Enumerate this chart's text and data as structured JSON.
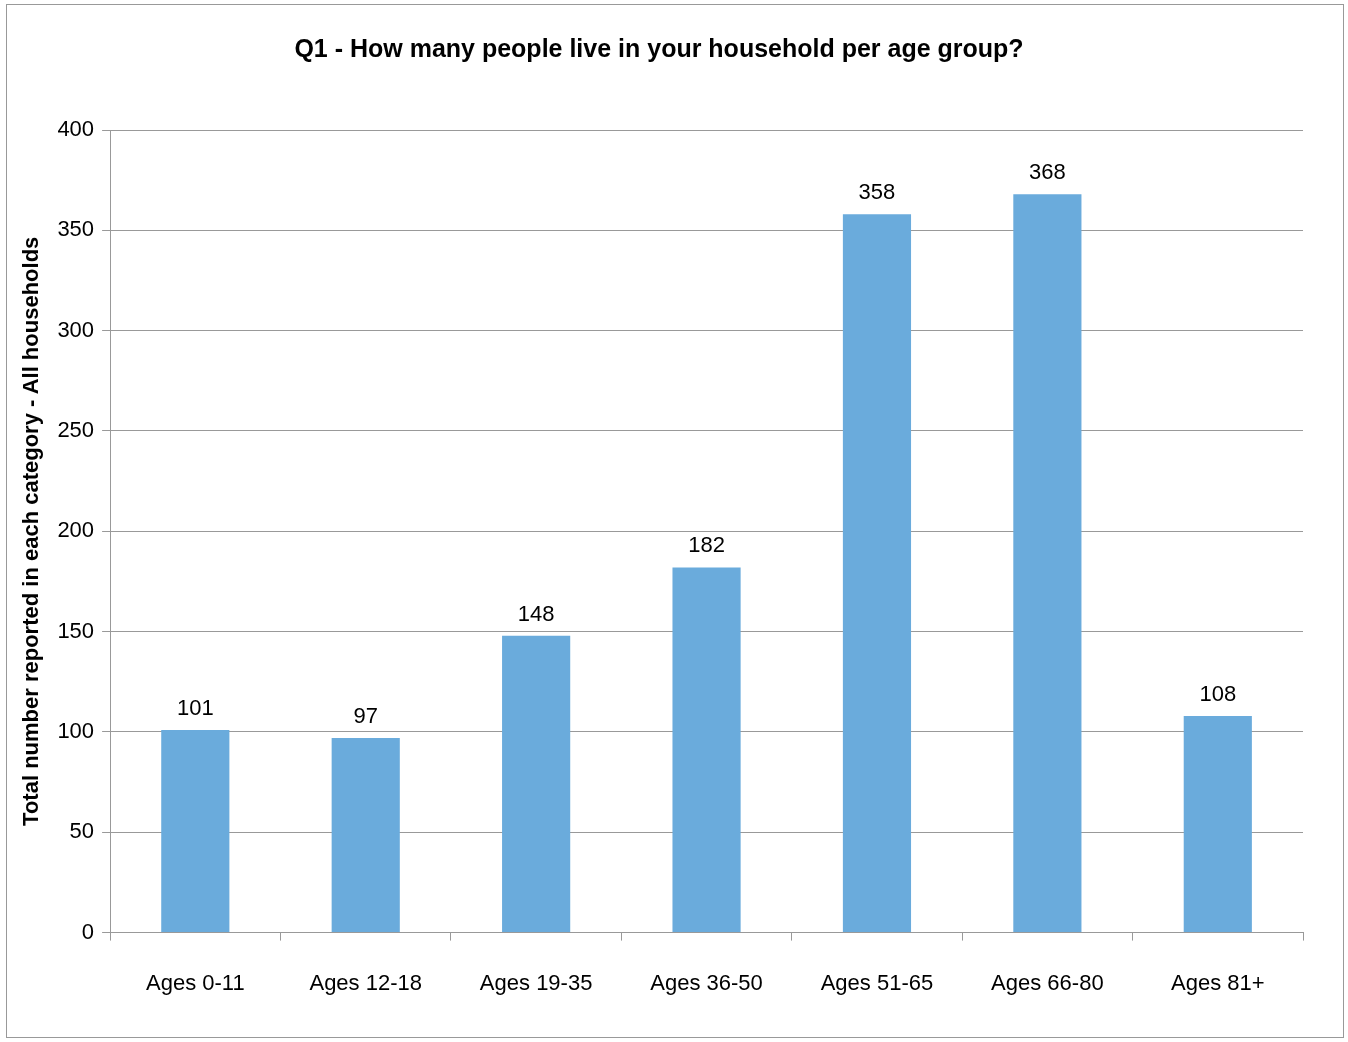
{
  "chart_data": {
    "type": "bar",
    "title": "Q1 - How many people live in your household per age group?",
    "ylabel": "Total number reported in each category - All households",
    "categories": [
      "Ages 0-11",
      "Ages 12-18",
      "Ages 19-35",
      "Ages 36-50",
      "Ages 51-65",
      "Ages 66-80",
      "Ages 81+"
    ],
    "values": [
      101,
      97,
      148,
      182,
      358,
      368,
      108
    ],
    "color": "#6aabdc",
    "ylim": [
      0,
      400
    ],
    "yticks": [
      0,
      50,
      100,
      150,
      200,
      250,
      300,
      350,
      400
    ],
    "grid": "y",
    "data_labels": true
  }
}
